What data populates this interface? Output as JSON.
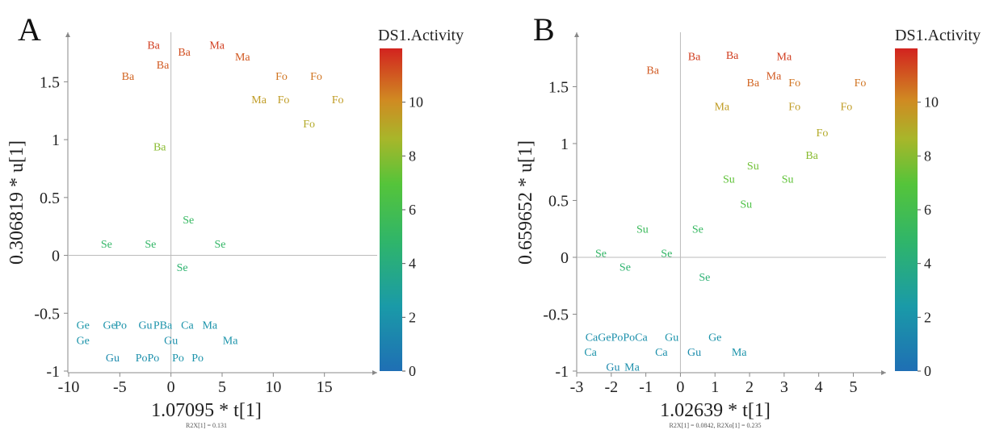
{
  "chart_data": [
    {
      "type": "scatter",
      "panel": "A",
      "xlabel": "1.07095 * t[1]",
      "ylabel": "0.306819 * u[1]",
      "footnote": "R2X[1] = 0.131",
      "xlim": [
        -10,
        20
      ],
      "ylim": [
        -1,
        1.9
      ],
      "xticks": [
        -10,
        -5,
        0,
        5,
        10,
        15
      ],
      "xtick_labels": [
        "-10",
        "-5",
        "0",
        "5",
        "10",
        "15"
      ],
      "yticks": [
        -1,
        -0.5,
        0,
        0.5,
        1,
        1.5
      ],
      "ytick_labels": [
        "-1",
        "-0.5",
        "0",
        "0.5",
        "1",
        "1.5"
      ],
      "colorbar": {
        "title": "DS1.Activity",
        "range": [
          0,
          12
        ],
        "ticks": [
          0,
          2,
          4,
          6,
          8,
          10
        ],
        "tick_labels": [
          "0",
          "2",
          "4",
          "6",
          "8",
          "10"
        ]
      },
      "points": [
        {
          "label": "Ba",
          "x": -1.7,
          "y": 1.82,
          "c": 11.5
        },
        {
          "label": "Ma",
          "x": 4.5,
          "y": 1.82,
          "c": 11.5
        },
        {
          "label": "Ba",
          "x": 1.3,
          "y": 1.76,
          "c": 11.2
        },
        {
          "label": "Ma",
          "x": 7.0,
          "y": 1.72,
          "c": 11.0
        },
        {
          "label": "Ba",
          "x": -0.8,
          "y": 1.65,
          "c": 11.0
        },
        {
          "label": "Ba",
          "x": -4.2,
          "y": 1.55,
          "c": 10.8
        },
        {
          "label": "Fo",
          "x": 10.8,
          "y": 1.55,
          "c": 10.5
        },
        {
          "label": "Fo",
          "x": 14.2,
          "y": 1.55,
          "c": 10.5
        },
        {
          "label": "Ma",
          "x": 8.6,
          "y": 1.35,
          "c": 9.5
        },
        {
          "label": "Fo",
          "x": 11.0,
          "y": 1.35,
          "c": 9.5
        },
        {
          "label": "Fo",
          "x": 16.3,
          "y": 1.35,
          "c": 9.5
        },
        {
          "label": "Fo",
          "x": 13.5,
          "y": 1.14,
          "c": 9.0
        },
        {
          "label": "Ba",
          "x": -1.1,
          "y": 0.94,
          "c": 8.0
        },
        {
          "label": "Se",
          "x": 1.7,
          "y": 0.31,
          "c": 5.2
        },
        {
          "label": "Se",
          "x": -6.3,
          "y": 0.1,
          "c": 5.0
        },
        {
          "label": "Se",
          "x": -2.0,
          "y": 0.1,
          "c": 5.0
        },
        {
          "label": "Se",
          "x": 4.8,
          "y": 0.1,
          "c": 5.0
        },
        {
          "label": "Se",
          "x": 1.1,
          "y": -0.1,
          "c": 4.6
        },
        {
          "label": "Ge",
          "x": -8.6,
          "y": -0.6,
          "c": 2.2
        },
        {
          "label": "Ge",
          "x": -6.0,
          "y": -0.6,
          "c": 2.0
        },
        {
          "label": "Po",
          "x": -4.9,
          "y": -0.6,
          "c": 2.0
        },
        {
          "label": "Gu",
          "x": -2.5,
          "y": -0.6,
          "c": 1.8
        },
        {
          "label": "PBa",
          "x": -0.8,
          "y": -0.6,
          "c": 2.0
        },
        {
          "label": "Ca",
          "x": 1.6,
          "y": -0.6,
          "c": 2.0
        },
        {
          "label": "Ma",
          "x": 3.8,
          "y": -0.6,
          "c": 2.0
        },
        {
          "label": "Ge",
          "x": -8.6,
          "y": -0.73,
          "c": 2.0
        },
        {
          "label": "Gu",
          "x": 0.0,
          "y": -0.73,
          "c": 1.8
        },
        {
          "label": "Ma",
          "x": 5.8,
          "y": -0.73,
          "c": 2.0
        },
        {
          "label": "Gu",
          "x": -5.7,
          "y": -0.88,
          "c": 1.5
        },
        {
          "label": "PoPo",
          "x": -2.3,
          "y": -0.88,
          "c": 1.8
        },
        {
          "label": "Po",
          "x": 0.7,
          "y": -0.88,
          "c": 2.0
        },
        {
          "label": "Po",
          "x": 2.6,
          "y": -0.88,
          "c": 2.0
        }
      ]
    },
    {
      "type": "scatter",
      "panel": "B",
      "xlabel": "1.02639 * t[1]",
      "ylabel": "0.659652 * u[1]",
      "footnote": "R2X[1] = 0.0842, R2Xo[1] = 0.235",
      "xlim": [
        -3,
        5.9
      ],
      "ylim": [
        -1,
        1.95
      ],
      "xticks": [
        -3,
        -2,
        -1,
        0,
        1,
        2,
        3,
        4,
        5
      ],
      "xtick_labels": [
        "-3",
        "-2",
        "-1",
        "0",
        "1",
        "2",
        "3",
        "4",
        "5"
      ],
      "yticks": [
        -1,
        -0.5,
        0,
        0.5,
        1,
        1.5
      ],
      "ytick_labels": [
        "-1",
        "-0.5",
        "0",
        "0.5",
        "1",
        "1.5"
      ],
      "colorbar": {
        "title": "DS1.Activity",
        "range": [
          0,
          12
        ],
        "ticks": [
          0,
          2,
          4,
          6,
          8,
          10
        ],
        "tick_labels": [
          "0",
          "2",
          "4",
          "6",
          "8",
          "10"
        ]
      },
      "points": [
        {
          "label": "Ba",
          "x": 0.4,
          "y": 1.77,
          "c": 11.5
        },
        {
          "label": "Ba",
          "x": 1.5,
          "y": 1.78,
          "c": 11.5
        },
        {
          "label": "Ma",
          "x": 3.0,
          "y": 1.77,
          "c": 11.5
        },
        {
          "label": "Ba",
          "x": -0.8,
          "y": 1.65,
          "c": 11.0
        },
        {
          "label": "Ma",
          "x": 2.7,
          "y": 1.6,
          "c": 11.0
        },
        {
          "label": "Ba",
          "x": 2.1,
          "y": 1.54,
          "c": 10.8
        },
        {
          "label": "Fo",
          "x": 3.3,
          "y": 1.54,
          "c": 10.5
        },
        {
          "label": "Fo",
          "x": 5.2,
          "y": 1.54,
          "c": 10.5
        },
        {
          "label": "Ma",
          "x": 1.2,
          "y": 1.33,
          "c": 9.5
        },
        {
          "label": "Fo",
          "x": 3.3,
          "y": 1.33,
          "c": 9.5
        },
        {
          "label": "Fo",
          "x": 4.8,
          "y": 1.33,
          "c": 9.5
        },
        {
          "label": "Fo",
          "x": 4.1,
          "y": 1.1,
          "c": 9.0
        },
        {
          "label": "Ba",
          "x": 3.8,
          "y": 0.9,
          "c": 8.0
        },
        {
          "label": "Su",
          "x": 2.1,
          "y": 0.81,
          "c": 7.5
        },
        {
          "label": "Su",
          "x": 1.4,
          "y": 0.69,
          "c": 7.2
        },
        {
          "label": "Su",
          "x": 3.1,
          "y": 0.69,
          "c": 7.2
        },
        {
          "label": "Su",
          "x": 1.9,
          "y": 0.47,
          "c": 6.5
        },
        {
          "label": "Su",
          "x": -1.1,
          "y": 0.25,
          "c": 5.5
        },
        {
          "label": "Se",
          "x": 0.5,
          "y": 0.25,
          "c": 5.2
        },
        {
          "label": "Se",
          "x": -2.3,
          "y": 0.04,
          "c": 5.0
        },
        {
          "label": "Se",
          "x": -0.4,
          "y": 0.04,
          "c": 5.0
        },
        {
          "label": "Se",
          "x": -1.6,
          "y": -0.08,
          "c": 4.6
        },
        {
          "label": "Se",
          "x": 0.7,
          "y": -0.17,
          "c": 4.4
        },
        {
          "label": "CaGePoPoCa",
          "x": -1.85,
          "y": -0.7,
          "c": 1.8
        },
        {
          "label": "Gu",
          "x": -0.25,
          "y": -0.7,
          "c": 2.0
        },
        {
          "label": "Ge",
          "x": 1.0,
          "y": -0.7,
          "c": 2.0
        },
        {
          "label": "Ca",
          "x": -2.6,
          "y": -0.83,
          "c": 2.0
        },
        {
          "label": "Ca",
          "x": -0.55,
          "y": -0.83,
          "c": 1.8
        },
        {
          "label": "Gu",
          "x": 0.4,
          "y": -0.83,
          "c": 1.6
        },
        {
          "label": "Ma",
          "x": 1.7,
          "y": -0.83,
          "c": 2.0
        },
        {
          "label": "Gu",
          "x": -1.95,
          "y": -0.96,
          "c": 1.4
        },
        {
          "label": "Ma",
          "x": -1.4,
          "y": -0.96,
          "c": 1.8
        }
      ]
    }
  ]
}
